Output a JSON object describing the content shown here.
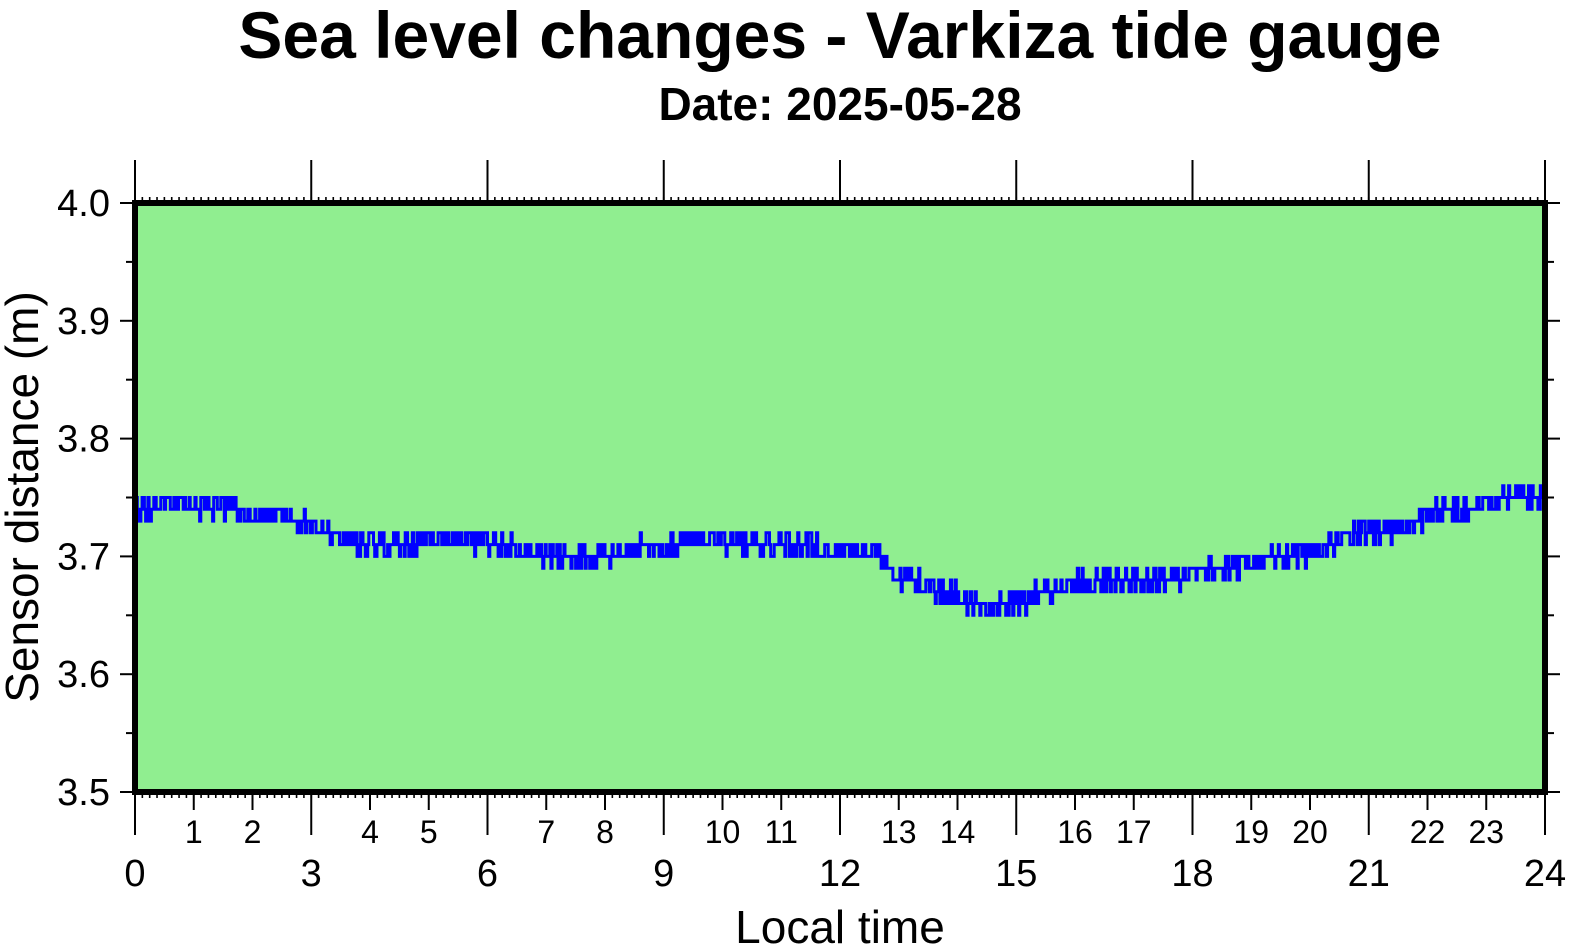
{
  "chart_data": {
    "type": "line",
    "title": "Sea level changes - Varkiza tide gauge",
    "subtitle": "Date: 2025-05-28",
    "xlabel": "Local time",
    "ylabel": "Sensor distance (m)",
    "xlim": [
      0,
      24
    ],
    "ylim": [
      3.5,
      4.0
    ],
    "x_major_ticks": [
      0,
      3,
      6,
      9,
      12,
      15,
      18,
      21,
      24
    ],
    "x_major_tick_labels": [
      "0",
      "3",
      "6",
      "9",
      "12",
      "15",
      "18",
      "21",
      "24"
    ],
    "x_minor_ticks": [
      1,
      2,
      4,
      5,
      7,
      8,
      10,
      11,
      13,
      14,
      16,
      17,
      19,
      20,
      22,
      23
    ],
    "x_minor_tick_labels": [
      "1",
      "2",
      "4",
      "5",
      "7",
      "8",
      "10",
      "11",
      "13",
      "14",
      "16",
      "17",
      "19",
      "20",
      "22",
      "23"
    ],
    "y_ticks": [
      3.5,
      3.6,
      3.7,
      3.8,
      3.9,
      4.0
    ],
    "y_tick_labels": [
      "3.5",
      "3.6",
      "3.7",
      "3.8",
      "3.9",
      "4.0"
    ],
    "grid": false,
    "plot_background": "#90ee90",
    "line_color": "#0000ff",
    "series": [
      {
        "x": [
          0,
          0.5,
          1,
          1.5,
          2,
          2.5,
          3,
          3.5,
          4,
          4.5,
          5,
          5.5,
          6,
          6.5,
          7,
          7.5,
          8,
          8.5,
          9,
          9.5,
          10,
          10.5,
          11,
          11.5,
          12,
          12.5,
          13,
          13.5,
          14,
          14.5,
          15,
          15.5,
          16,
          16.5,
          17,
          17.5,
          18,
          18.5,
          19,
          19.5,
          20,
          20.5,
          21,
          21.5,
          22,
          22.5,
          23,
          23.5,
          24
        ],
        "values": [
          3.74,
          3.745,
          3.745,
          3.74,
          3.735,
          3.735,
          3.725,
          3.715,
          3.71,
          3.71,
          3.715,
          3.715,
          3.71,
          3.705,
          3.7,
          3.7,
          3.7,
          3.705,
          3.71,
          3.715,
          3.715,
          3.71,
          3.71,
          3.71,
          3.705,
          3.705,
          3.685,
          3.675,
          3.665,
          3.655,
          3.66,
          3.67,
          3.675,
          3.68,
          3.68,
          3.68,
          3.685,
          3.69,
          3.695,
          3.7,
          3.705,
          3.715,
          3.72,
          3.725,
          3.735,
          3.74,
          3.745,
          3.755,
          3.75
        ]
      }
    ]
  }
}
